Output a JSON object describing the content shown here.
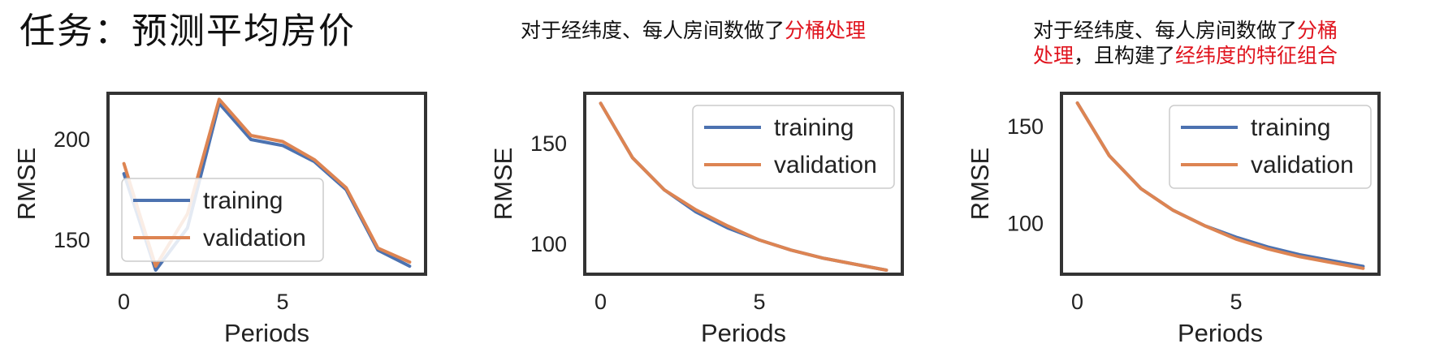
{
  "title": "任务：预测平均房价",
  "notes": [
    null,
    {
      "parts": [
        {
          "text": "对于经纬度、每人房间数做了",
          "highlight": false
        },
        {
          "text": "分桶处理",
          "highlight": true
        }
      ]
    },
    {
      "lines": [
        [
          {
            "text": "对于经纬度、每人房间数做了",
            "highlight": false
          },
          {
            "text": "分桶",
            "highlight": true
          }
        ],
        [
          {
            "text": "处理",
            "highlight": true
          },
          {
            "text": "，且构建了",
            "highlight": false
          },
          {
            "text": "经纬度的特征组合",
            "highlight": true
          }
        ]
      ]
    }
  ],
  "colors": {
    "training": "#4c72b0",
    "validation": "#dd8452",
    "highlight": "#e0141e"
  },
  "chart_data": [
    {
      "type": "line",
      "xlabel": "Periods",
      "ylabel": "RMSE",
      "x": [
        0,
        1,
        2,
        3,
        4,
        5,
        6,
        7,
        8,
        9
      ],
      "xlim": [
        -0.5,
        9.5
      ],
      "ylim": [
        133,
        223
      ],
      "xticks": [
        0,
        5
      ],
      "yticks": [
        150,
        200
      ],
      "legend_position": "lower-left",
      "series": [
        {
          "name": "training",
          "values": [
            183,
            135,
            156,
            218,
            200,
            197,
            189,
            175,
            145,
            137
          ]
        },
        {
          "name": "validation",
          "values": [
            188,
            137,
            163,
            220,
            202,
            199,
            190,
            176,
            146,
            139
          ]
        }
      ]
    },
    {
      "type": "line",
      "xlabel": "Periods",
      "ylabel": "RMSE",
      "x": [
        0,
        1,
        2,
        3,
        4,
        5,
        6,
        7,
        8,
        9
      ],
      "xlim": [
        -0.5,
        9.5
      ],
      "ylim": [
        85,
        175
      ],
      "xticks": [
        0,
        5
      ],
      "yticks": [
        100,
        150
      ],
      "legend_position": "upper-right",
      "series": [
        {
          "name": "training",
          "values": [
            170,
            143,
            127,
            116,
            108,
            102,
            97,
            93,
            90,
            87
          ]
        },
        {
          "name": "validation",
          "values": [
            170,
            143,
            127,
            117,
            109,
            102,
            97,
            93,
            90,
            87
          ]
        }
      ]
    },
    {
      "type": "line",
      "xlabel": "Periods",
      "ylabel": "RMSE",
      "x": [
        0,
        1,
        2,
        3,
        4,
        5,
        6,
        7,
        8,
        9
      ],
      "xlim": [
        -0.5,
        9.5
      ],
      "ylim": [
        74,
        167
      ],
      "xticks": [
        0,
        5
      ],
      "yticks": [
        100,
        150
      ],
      "legend_position": "upper-right",
      "series": [
        {
          "name": "training",
          "values": [
            162,
            135,
            118,
            107,
            99,
            93,
            88,
            84,
            81,
            78
          ]
        },
        {
          "name": "validation",
          "values": [
            162,
            135,
            118,
            107,
            99,
            92,
            87,
            83,
            80,
            77
          ]
        }
      ]
    }
  ]
}
